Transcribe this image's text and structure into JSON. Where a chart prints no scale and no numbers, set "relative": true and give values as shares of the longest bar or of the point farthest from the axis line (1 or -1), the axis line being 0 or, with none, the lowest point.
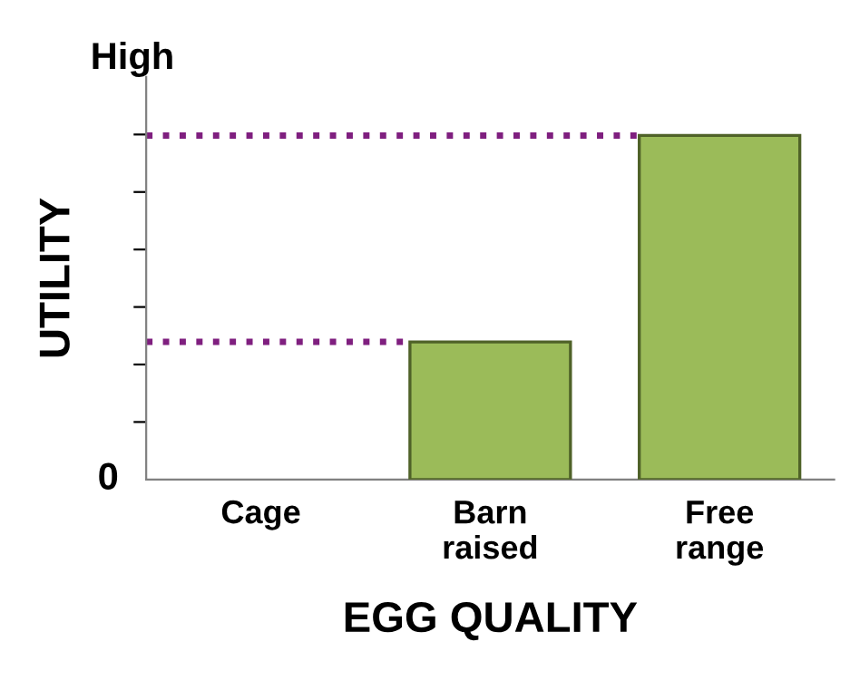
{
  "chart_data": {
    "type": "bar",
    "relative": true,
    "xlabel": "EGG QUALITY",
    "ylabel": "UTILITY",
    "categories": [
      "Cage",
      "Barn\nraised",
      "Free\nrange"
    ],
    "values": [
      0,
      0.4,
      1
    ],
    "color": "#9bbb59",
    "annotations": [
      "High",
      "0"
    ],
    "ref_lines": [
      {
        "axis": "y",
        "value": 0.4,
        "color": "#7f1f7f",
        "line_style": "dotted"
      },
      {
        "axis": "y",
        "value": 1,
        "color": "#7f1f7f",
        "line_style": "dotted"
      }
    ],
    "grid": false,
    "legend": false
  }
}
